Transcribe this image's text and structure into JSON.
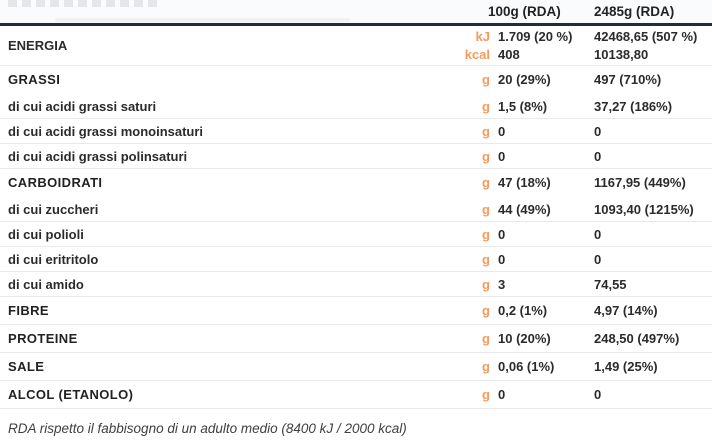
{
  "header": {
    "col_100g": "100g (RDA)",
    "col_2485g": "2485g (RDA)"
  },
  "energy": {
    "label": "ENERGIA",
    "kj": {
      "unit": "kJ",
      "per_100g": "1.709 (20 %)",
      "per_2485g": "42468,65 (507 %)"
    },
    "kcal": {
      "unit": "kcal",
      "per_100g": "408",
      "per_2485g": "10138,80"
    }
  },
  "rows": [
    {
      "label": "GRASSI",
      "unit": "g",
      "per_100g": "20 (29%)",
      "per_2485g": "497 (710%)"
    },
    {
      "label": "di cui acidi grassi saturi",
      "unit": "g",
      "per_100g": "1,5 (8%)",
      "per_2485g": "37,27 (186%)"
    },
    {
      "label": "di cui acidi grassi monoinsaturi",
      "unit": "g",
      "per_100g": "0",
      "per_2485g": "0"
    },
    {
      "label": "di cui acidi grassi polinsaturi",
      "unit": "g",
      "per_100g": "0",
      "per_2485g": "0"
    },
    {
      "label": "CARBOIDRATI",
      "unit": "g",
      "per_100g": "47 (18%)",
      "per_2485g": "1167,95 (449%)"
    },
    {
      "label": "di cui zuccheri",
      "unit": "g",
      "per_100g": "44 (49%)",
      "per_2485g": "1093,40 (1215%)"
    },
    {
      "label": "di cui polioli",
      "unit": "g",
      "per_100g": "0",
      "per_2485g": "0"
    },
    {
      "label": "di cui eritritolo",
      "unit": "g",
      "per_100g": "0",
      "per_2485g": "0"
    },
    {
      "label": "di cui amido",
      "unit": "g",
      "per_100g": "3",
      "per_2485g": "74,55"
    },
    {
      "label": "FIBRE",
      "unit": "g",
      "per_100g": "0,2 (1%)",
      "per_2485g": "4,97 (14%)"
    },
    {
      "label": "PROTEINE",
      "unit": "g",
      "per_100g": "10 (20%)",
      "per_2485g": "248,50 (497%)"
    },
    {
      "label": "SALE",
      "unit": "g",
      "per_100g": "0,06 (1%)",
      "per_2485g": "1,49 (25%)"
    },
    {
      "label": "ALCOL (ETANOLO)",
      "unit": "g",
      "per_100g": "0",
      "per_2485g": "0"
    }
  ],
  "footer": {
    "note": "RDA rispetto il fabbisogno di un adulto medio (8400 kJ / 2000 kcal)"
  },
  "colors": {
    "accent_orange": "#f89a5b",
    "header_rule": "#232c3a",
    "row_divider": "#e8e8ed",
    "text": "#2b2b2b"
  }
}
